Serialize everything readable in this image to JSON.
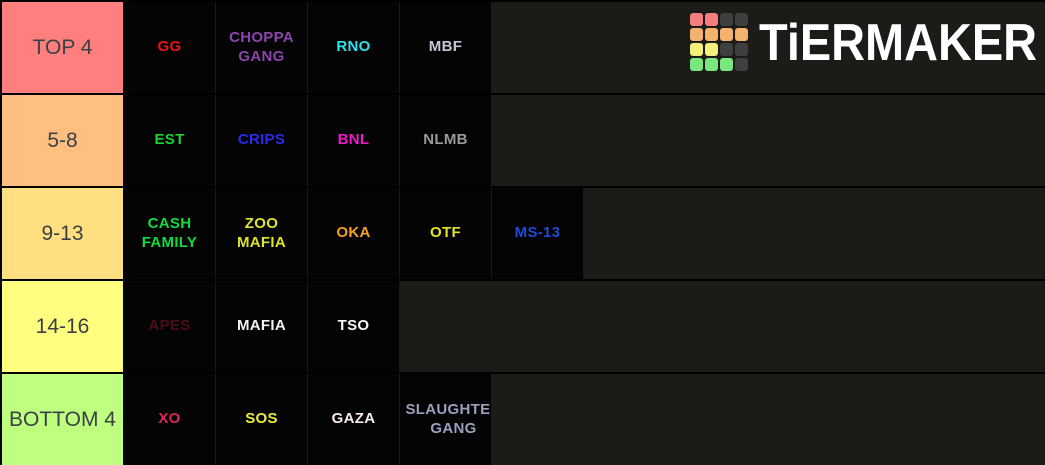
{
  "page": {
    "row_background": "#1b1b17",
    "item_background": "#040404",
    "label_text_color": "#3a4045"
  },
  "logo": {
    "text": "TiERMAKER",
    "grid_colors": [
      "#f47e7e",
      "#f47e7e",
      "#3f3f3f",
      "#3f3f3f",
      "#f5b26f",
      "#f5b26f",
      "#f5b26f",
      "#f5b26f",
      "#f5ef7e",
      "#f5ef7e",
      "#3f3f3f",
      "#3f3f3f",
      "#79e77d",
      "#79e77d",
      "#79e77d",
      "#3f3f3f"
    ]
  },
  "tiers": [
    {
      "label": "TOP 4",
      "color": "#ff7f7f",
      "items": [
        {
          "label": "GG",
          "color": "#e81414"
        },
        {
          "label": "CHOPPA\nGANG",
          "color": "#8e44ad"
        },
        {
          "label": "RNO",
          "color": "#2ee1f0"
        },
        {
          "label": "MBF",
          "color": "#c9c4da"
        }
      ]
    },
    {
      "label": "5-8",
      "color": "#ffbf7f",
      "items": [
        {
          "label": "EST",
          "color": "#1ed42c"
        },
        {
          "label": "CRIPS",
          "color": "#2a2af0"
        },
        {
          "label": "BNL",
          "color": "#ee19cc"
        },
        {
          "label": "NLMB",
          "color": "#9a9a9a"
        }
      ]
    },
    {
      "label": "9-13",
      "color": "#ffdf7f",
      "items": [
        {
          "label": "CASH\nFAMILY",
          "color": "#0fdd3f"
        },
        {
          "label": "ZOO\nMAFIA",
          "color": "#dde42f"
        },
        {
          "label": "OKA",
          "color": "#f5a21e"
        },
        {
          "label": "OTF",
          "color": "#e3e32b"
        },
        {
          "label": "MS-13",
          "color": "#1f4cd6"
        }
      ]
    },
    {
      "label": "14-16",
      "color": "#ffff7f",
      "items": [
        {
          "label": "APES",
          "color": "#4c0d18"
        },
        {
          "label": "MAFIA",
          "color": "#f2f2f2"
        },
        {
          "label": "TSO",
          "color": "#f6f6f6"
        }
      ]
    },
    {
      "label": "BOTTOM 4",
      "color": "#bfff7f",
      "items": [
        {
          "label": "XO",
          "color": "#e2255f"
        },
        {
          "label": "SOS",
          "color": "#e9ee3c"
        },
        {
          "label": "GAZA",
          "color": "#f6e9f2"
        },
        {
          "label": "SLAUGHTER\nGANG",
          "color": "#9aa0bd",
          "clipped": true
        }
      ]
    }
  ]
}
